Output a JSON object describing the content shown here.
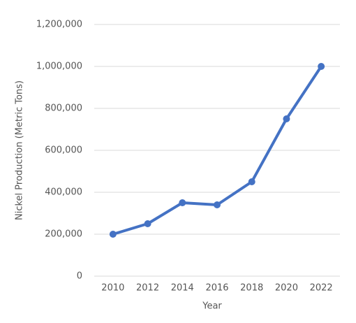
{
  "chart_data": {
    "type": "line",
    "x_label": "Year",
    "y_label": "Nickel Production (Metric Tons)",
    "x": [
      2010,
      2012,
      2014,
      2016,
      2018,
      2020,
      2022
    ],
    "xlim": [
      2009,
      2023
    ],
    "xticks": [
      2010,
      2012,
      2014,
      2016,
      2018,
      2020,
      2022
    ],
    "series": [
      {
        "color": "#4472c4",
        "values": [
          200000,
          250000,
          350000,
          340000,
          450000,
          750000,
          1000000
        ]
      }
    ],
    "ylim": [
      0,
      1200000
    ],
    "yticks": [
      0,
      {
        "value": 200000,
        "label": "200,000"
      },
      {
        "value": 400000,
        "label": "400,000"
      },
      {
        "value": 600000,
        "label": "600,000"
      },
      {
        "value": 800000,
        "label": "800,000"
      },
      {
        "value": 1000000,
        "label": "1,000,000"
      },
      {
        "value": 1200000,
        "label": "1,200,000"
      }
    ],
    "grid": true
  }
}
